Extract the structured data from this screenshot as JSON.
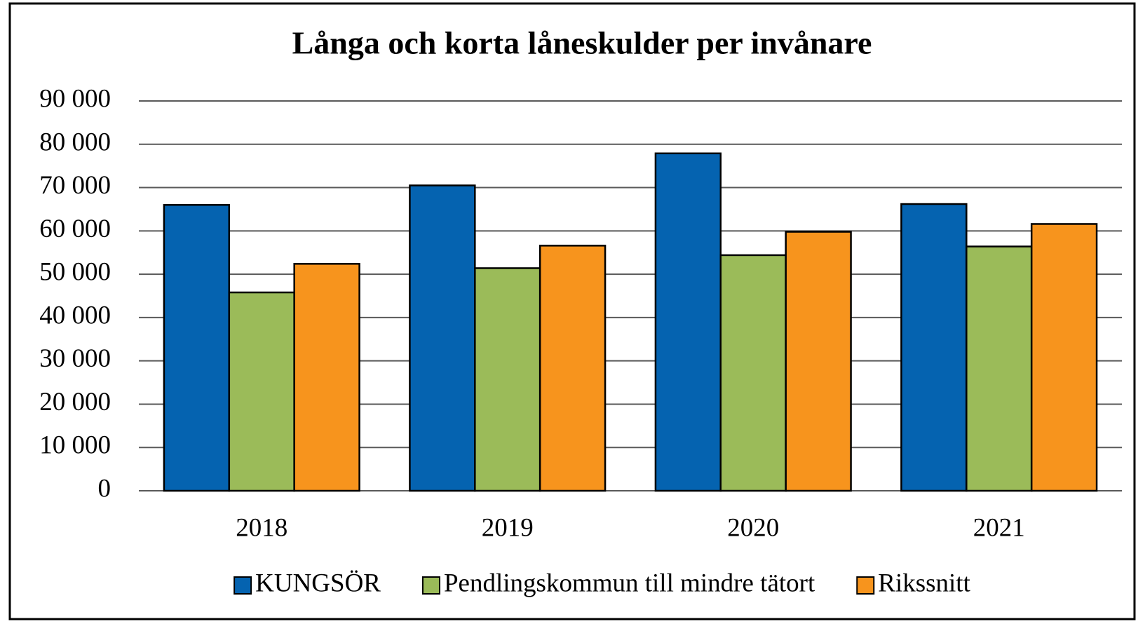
{
  "chart_data": {
    "type": "bar",
    "title": "Långa och korta låneskulder per invånare",
    "categories": [
      "2018",
      "2019",
      "2020",
      "2021"
    ],
    "series": [
      {
        "name": "KUNGSÖR",
        "color": "#0563b0",
        "values": [
          66000,
          70500,
          77900,
          66200
        ]
      },
      {
        "name": "Pendlingskommun till mindre tätort",
        "color": "#9bbb59",
        "values": [
          45800,
          51400,
          54400,
          56400
        ]
      },
      {
        "name": "Rikssnitt",
        "color": "#f7941d",
        "values": [
          52400,
          56600,
          59800,
          61600
        ]
      }
    ],
    "ylim": [
      0,
      90000
    ],
    "yticks": [
      0,
      {
        "value": 10000,
        "label": "10 000"
      },
      {
        "value": 20000,
        "label": "20 000"
      },
      {
        "value": 30000,
        "label": "30 000"
      },
      {
        "value": 40000,
        "label": "40 000"
      },
      {
        "value": 50000,
        "label": "50 000"
      },
      {
        "value": 60000,
        "label": "60 000"
      },
      {
        "value": 70000,
        "label": "70 000"
      },
      {
        "value": 80000,
        "label": "80 000"
      },
      {
        "value": 90000,
        "label": "90 000"
      }
    ],
    "grid": true,
    "legend": "bottom"
  }
}
